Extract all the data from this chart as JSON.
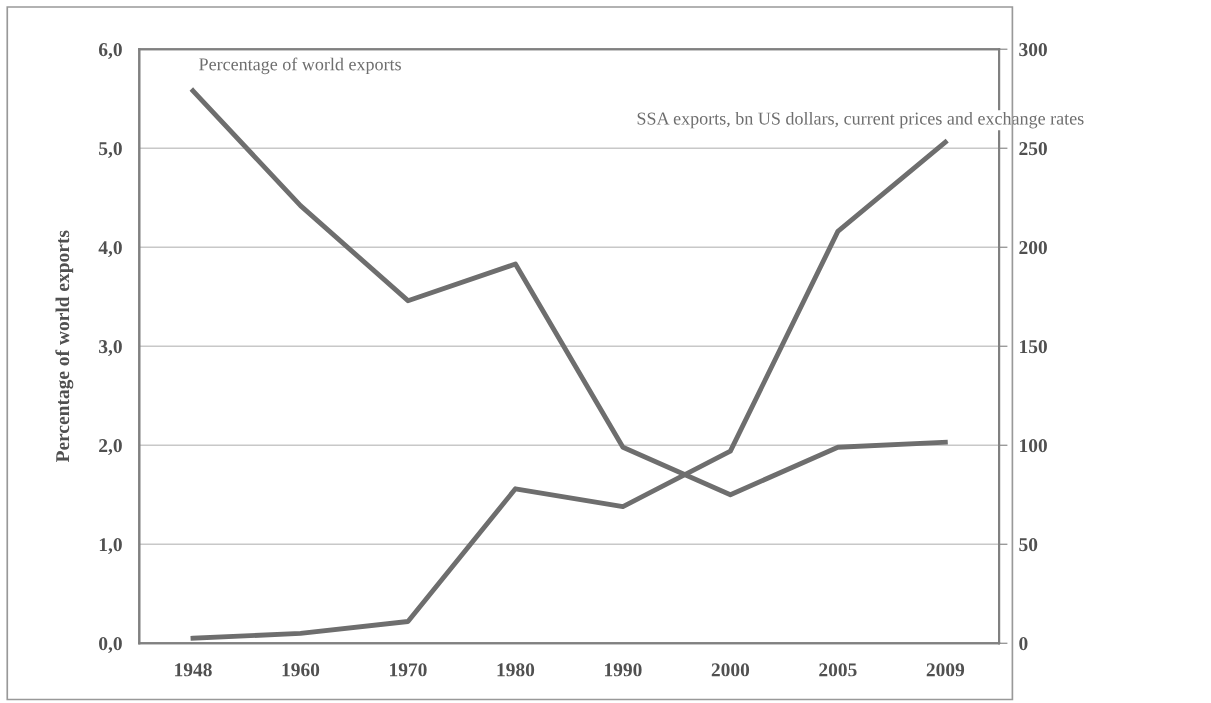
{
  "chart_data": {
    "type": "line",
    "ylabel": "Percentage of world exports",
    "categories": [
      "1948",
      "1960",
      "1970",
      "1980",
      "1990",
      "2000",
      "2005",
      "2009"
    ],
    "series": [
      {
        "name": "Percentage of world exports",
        "color": "#6e6e6e",
        "values": [
          5.58,
          4.42,
          3.46,
          3.83,
          1.98,
          1.5,
          1.98,
          2.03
        ]
      },
      {
        "name": "SSA exports, bn US dollars, current prices and exchange rates",
        "color": "#6e6e6e",
        "axis": "y2",
        "values": [
          2.5,
          5,
          11,
          78,
          69,
          97,
          208,
          253
        ]
      }
    ],
    "ylim": [
      0,
      6
    ],
    "yticks": [
      {
        "value": 0,
        "label": "0,0"
      },
      {
        "value": 1,
        "label": "1,0"
      },
      {
        "value": 2,
        "label": "2,0"
      },
      {
        "value": 3,
        "label": "3,0"
      },
      {
        "value": 4,
        "label": "4,0"
      },
      {
        "value": 5,
        "label": "5,0"
      },
      {
        "value": 6,
        "label": "6,0"
      }
    ],
    "y2lim": [
      0,
      300
    ],
    "y2ticks": [
      0,
      50,
      100,
      150,
      200,
      250,
      300
    ],
    "grid": "y",
    "legend": false,
    "marker": "none",
    "line_style": "solid"
  }
}
